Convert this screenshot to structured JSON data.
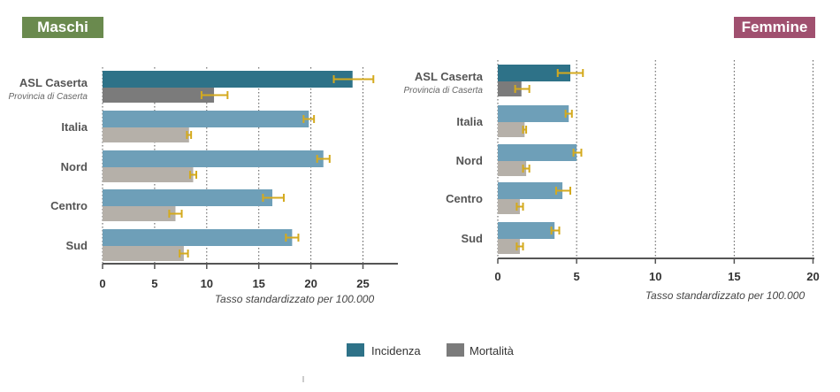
{
  "chart_data": [
    {
      "type": "bar",
      "panel": "Maschi",
      "title": "Maschi",
      "xlabel": "Tasso standardizzato per 100.000",
      "xlim": [
        0,
        28
      ],
      "xticks": [
        0,
        5,
        10,
        15,
        20,
        25
      ],
      "categories": [
        {
          "label": "ASL Caserta",
          "sublabel": "Provincia di Caserta"
        },
        {
          "label": "Italia"
        },
        {
          "label": "Nord"
        },
        {
          "label": "Centro"
        },
        {
          "label": "Sud"
        }
      ],
      "series": [
        {
          "name": "Incidenza",
          "values": [
            24.0,
            19.8,
            21.2,
            16.3,
            18.2
          ],
          "err_low": [
            22.2,
            19.3,
            20.6,
            15.4,
            17.6
          ],
          "err_high": [
            26.0,
            20.3,
            21.8,
            17.4,
            18.8
          ]
        },
        {
          "name": "Mortalità",
          "values": [
            10.7,
            8.3,
            8.7,
            7.0,
            7.8
          ],
          "err_low": [
            9.5,
            8.1,
            8.4,
            6.4,
            7.4
          ],
          "err_high": [
            12.0,
            8.5,
            9.0,
            7.6,
            8.2
          ]
        }
      ]
    },
    {
      "type": "bar",
      "panel": "Femmine",
      "title": "Femmine",
      "xlabel": "Tasso standardizzato per 100.000",
      "xlim": [
        0,
        20
      ],
      "xticks": [
        0,
        5,
        10,
        15,
        20
      ],
      "categories": [
        {
          "label": "ASL Caserta",
          "sublabel": "Provincia di Caserta"
        },
        {
          "label": "Italia"
        },
        {
          "label": "Nord"
        },
        {
          "label": "Centro"
        },
        {
          "label": "Sud"
        }
      ],
      "series": [
        {
          "name": "Incidenza",
          "values": [
            4.6,
            4.5,
            5.0,
            4.1,
            3.6
          ],
          "err_low": [
            3.8,
            4.3,
            4.8,
            3.7,
            3.4
          ],
          "err_high": [
            5.4,
            4.7,
            5.3,
            4.6,
            3.9
          ]
        },
        {
          "name": "Mortalità",
          "values": [
            1.5,
            1.7,
            1.8,
            1.4,
            1.4
          ],
          "err_low": [
            1.1,
            1.6,
            1.6,
            1.2,
            1.2
          ],
          "err_high": [
            2.0,
            1.8,
            2.0,
            1.6,
            1.6
          ]
        }
      ]
    }
  ],
  "legend": [
    {
      "name": "Incidenza",
      "color": "#2e7288"
    },
    {
      "name": "Mortalità",
      "color": "#7b7b7b"
    }
  ],
  "colors": {
    "incidence_highlight": "#2e7288",
    "incidence": "#6e9fb8",
    "mortality_highlight": "#7b7b7b",
    "mortality": "#b5b0a9",
    "error_bar": "#d4aa1e",
    "badge_maschi_bg": "#6a8a4e",
    "badge_femmine_bg": "#a0506f"
  }
}
